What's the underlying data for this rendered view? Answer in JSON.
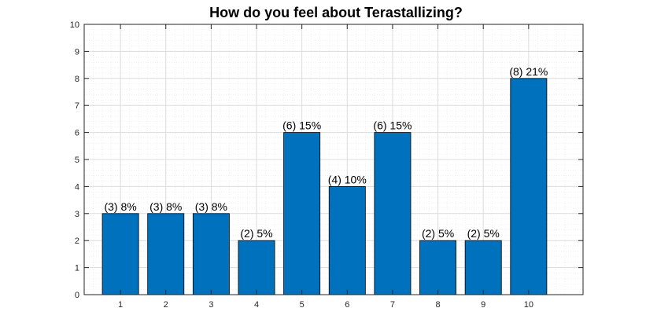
{
  "chart_data": {
    "type": "bar",
    "title": "How do you feel about Terastallizing?",
    "xlabel": "",
    "ylabel": "",
    "categories": [
      "1",
      "2",
      "3",
      "4",
      "5",
      "6",
      "7",
      "8",
      "9",
      "10"
    ],
    "values": [
      3,
      3,
      3,
      2,
      6,
      4,
      6,
      2,
      2,
      8
    ],
    "data_labels": [
      "(3) 8%",
      "(3) 8%",
      "(3) 8%",
      "(2) 5%",
      "(6) 15%",
      "(4) 10%",
      "(6) 15%",
      "(2) 5%",
      "(2) 5%",
      "(8) 21%"
    ],
    "ylim": [
      0,
      10
    ],
    "yticks": [
      "0",
      "1",
      "2",
      "3",
      "4",
      "5",
      "6",
      "7",
      "8",
      "9",
      "10"
    ],
    "grid": "major and minor",
    "legend": "none"
  },
  "colors": {
    "bar_fill": "#0072BD",
    "bar_edge": "#000000",
    "axis": "#262626",
    "major_grid": "#dcdcdc",
    "minor_grid": "#e6e6e6",
    "background": "#ffffff"
  }
}
